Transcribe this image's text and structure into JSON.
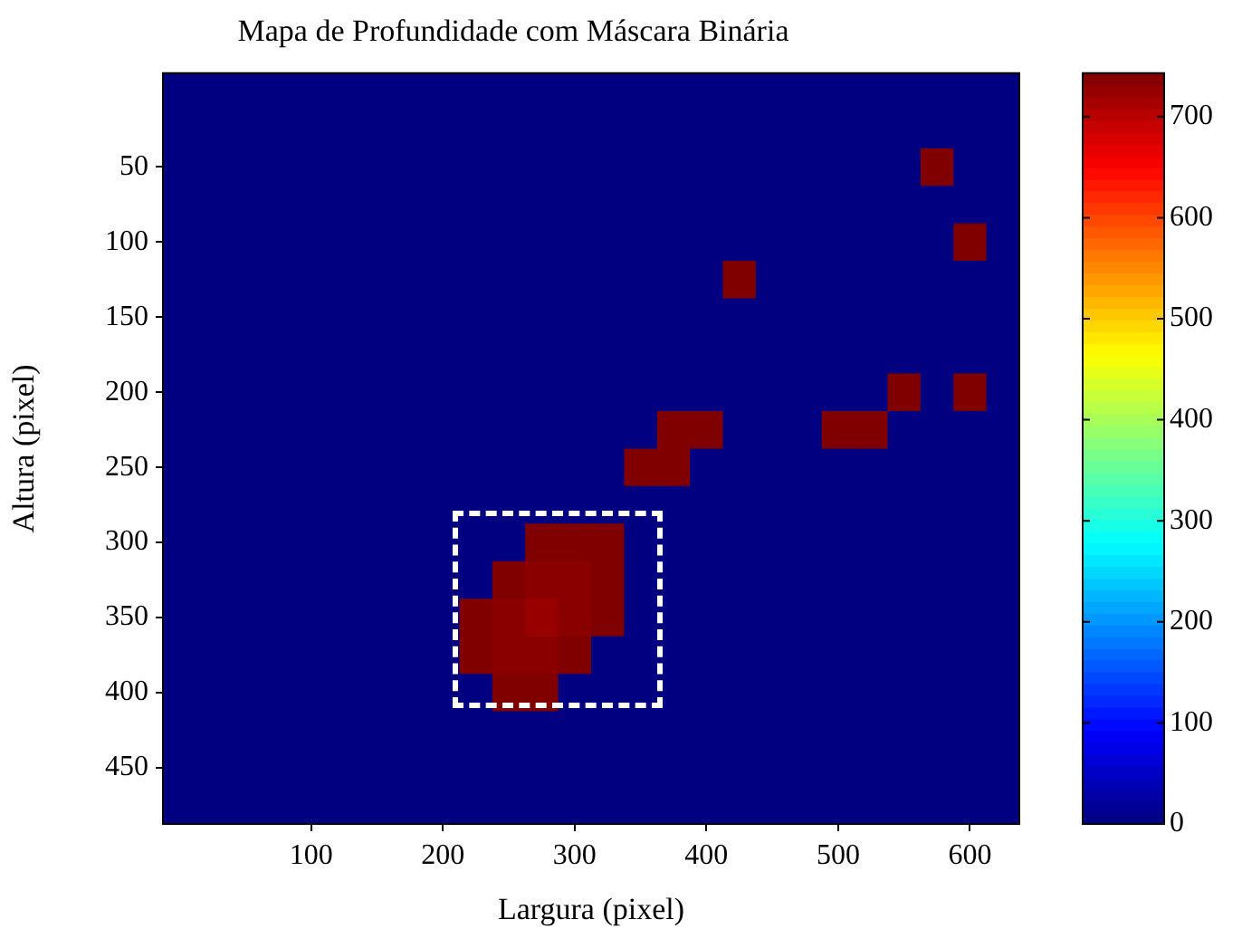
{
  "chart_data": {
    "type": "heatmap",
    "title": "Mapa de Profundidade com Máscara Binária",
    "xlabel": "Largura (pixel)",
    "ylabel": "Altura (pixel)",
    "categories": [
      null,
      null,
      null,
      null,
      "100",
      null,
      null,
      null,
      "200",
      null,
      null,
      null,
      "300",
      null,
      null,
      null,
      "400",
      null,
      null,
      null,
      "500",
      null,
      null,
      null,
      "600",
      null
    ],
    "y_categories": [
      null,
      null,
      "50",
      null,
      "100",
      null,
      "150",
      null,
      "200",
      null,
      "250",
      null,
      "300",
      null,
      "350",
      null,
      "400",
      null,
      "450",
      null
    ],
    "clim": [
      0,
      743
    ],
    "cticks": [
      0,
      100,
      200,
      300,
      400,
      500,
      600,
      700
    ],
    "cells": [
      [
        0,
        0,
        0,
        0,
        0,
        0,
        0,
        0,
        0,
        0,
        0,
        0,
        0,
        0,
        0,
        0,
        0,
        0,
        0,
        0,
        0,
        0,
        0,
        0,
        0,
        0
      ],
      [
        0,
        0,
        0,
        0,
        0,
        0,
        0,
        0,
        0,
        0,
        0,
        0,
        0,
        0,
        0,
        0,
        0,
        0,
        0,
        0,
        0,
        0,
        0,
        0,
        0,
        0
      ],
      [
        0,
        0,
        0,
        0,
        0,
        0,
        0,
        0,
        0,
        0,
        0,
        0,
        0,
        0,
        0,
        0,
        0,
        0,
        0,
        0,
        0,
        0,
        0,
        743,
        0,
        0
      ],
      [
        0,
        0,
        0,
        0,
        0,
        0,
        0,
        0,
        0,
        0,
        0,
        0,
        0,
        0,
        0,
        0,
        0,
        0,
        0,
        0,
        0,
        0,
        0,
        0,
        0,
        0
      ],
      [
        0,
        0,
        0,
        0,
        0,
        0,
        0,
        0,
        0,
        0,
        0,
        0,
        0,
        0,
        0,
        0,
        0,
        0,
        0,
        0,
        0,
        0,
        0,
        0,
        743,
        0
      ],
      [
        0,
        0,
        0,
        0,
        0,
        0,
        0,
        0,
        0,
        0,
        0,
        0,
        0,
        0,
        0,
        0,
        0,
        743,
        0,
        0,
        0,
        0,
        0,
        0,
        0,
        0
      ],
      [
        0,
        0,
        0,
        0,
        0,
        0,
        0,
        0,
        0,
        0,
        0,
        0,
        0,
        0,
        0,
        0,
        0,
        0,
        0,
        0,
        0,
        0,
        0,
        0,
        0,
        0
      ],
      [
        0,
        0,
        0,
        0,
        0,
        0,
        0,
        0,
        0,
        0,
        0,
        0,
        0,
        0,
        0,
        0,
        0,
        0,
        0,
        0,
        0,
        0,
        0,
        0,
        0,
        0
      ],
      [
        0,
        0,
        0,
        0,
        0,
        0,
        0,
        0,
        0,
        0,
        0,
        0,
        0,
        0,
        0,
        0,
        0,
        0,
        0,
        0,
        0,
        0,
        743,
        0,
        743,
        0
      ],
      [
        0,
        0,
        0,
        0,
        0,
        0,
        0,
        0,
        0,
        0,
        0,
        0,
        0,
        0,
        0,
        743,
        743,
        0,
        0,
        0,
        743,
        743,
        0,
        0,
        0,
        0
      ],
      [
        0,
        0,
        0,
        0,
        0,
        0,
        0,
        0,
        0,
        0,
        0,
        0,
        0,
        0,
        743,
        743,
        0,
        0,
        0,
        0,
        0,
        0,
        0,
        0,
        0,
        0
      ],
      [
        0,
        0,
        0,
        0,
        0,
        0,
        0,
        0,
        0,
        0,
        0,
        0,
        0,
        0,
        0,
        0,
        0,
        0,
        0,
        0,
        0,
        0,
        0,
        0,
        0,
        0
      ],
      [
        0,
        0,
        0,
        0,
        0,
        0,
        0,
        0,
        0,
        0,
        0,
        743,
        743,
        743,
        0,
        0,
        0,
        0,
        0,
        0,
        0,
        0,
        0,
        0,
        0,
        0
      ],
      [
        0,
        0,
        0,
        0,
        0,
        0,
        0,
        0,
        0,
        0,
        743,
        735,
        735,
        743,
        0,
        0,
        0,
        0,
        0,
        0,
        0,
        0,
        0,
        0,
        0,
        0
      ],
      [
        0,
        0,
        0,
        0,
        0,
        0,
        0,
        0,
        0,
        743,
        735,
        725,
        735,
        743,
        0,
        0,
        0,
        0,
        0,
        0,
        0,
        0,
        0,
        0,
        0,
        0
      ],
      [
        0,
        0,
        0,
        0,
        0,
        0,
        0,
        0,
        0,
        743,
        735,
        735,
        743,
        0,
        0,
        0,
        0,
        0,
        0,
        0,
        0,
        0,
        0,
        0,
        0,
        0
      ],
      [
        0,
        0,
        0,
        0,
        0,
        0,
        0,
        0,
        0,
        0,
        743,
        743,
        0,
        0,
        0,
        0,
        0,
        0,
        0,
        0,
        0,
        0,
        0,
        0,
        0,
        0
      ],
      [
        0,
        0,
        0,
        0,
        0,
        0,
        0,
        0,
        0,
        0,
        0,
        0,
        0,
        0,
        0,
        0,
        0,
        0,
        0,
        0,
        0,
        0,
        0,
        0,
        0,
        0
      ],
      [
        0,
        0,
        0,
        0,
        0,
        0,
        0,
        0,
        0,
        0,
        0,
        0,
        0,
        0,
        0,
        0,
        0,
        0,
        0,
        0,
        0,
        0,
        0,
        0,
        0,
        0
      ],
      [
        0,
        0,
        0,
        0,
        0,
        0,
        0,
        0,
        0,
        0,
        0,
        0,
        0,
        0,
        0,
        0,
        0,
        0,
        0,
        0,
        0,
        0,
        0,
        0,
        0,
        0
      ]
    ]
  }
}
